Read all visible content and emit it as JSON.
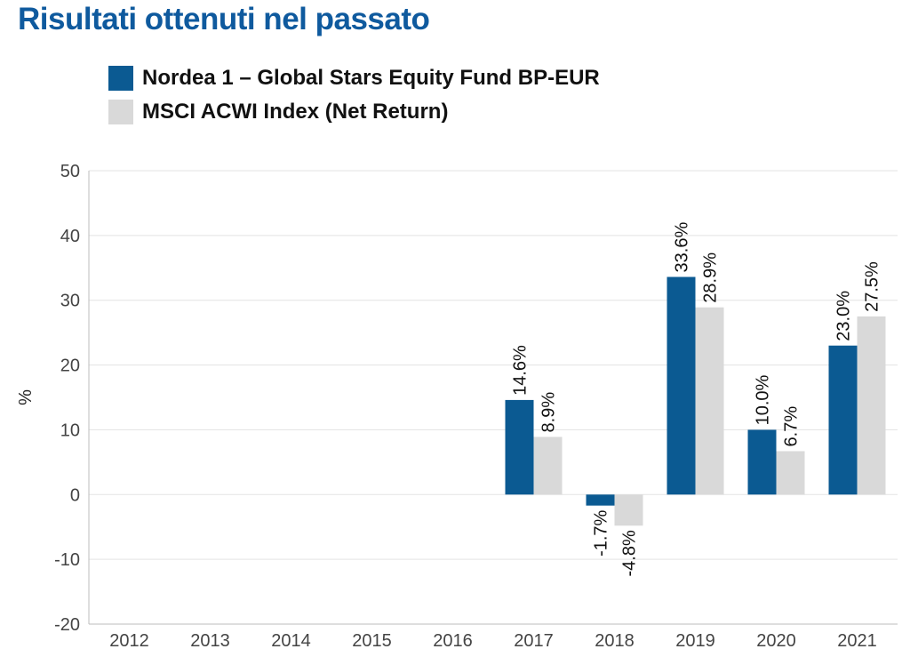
{
  "title": "Risultati ottenuti nel passato",
  "colors": {
    "fund": "#0b5a92",
    "index": "#d9d9d9",
    "title": "#0f5a9e"
  },
  "chart_data": {
    "type": "bar",
    "categories": [
      "2012",
      "2013",
      "2014",
      "2015",
      "2016",
      "2017",
      "2018",
      "2019",
      "2020",
      "2021"
    ],
    "series": [
      {
        "name": "Nordea 1 – Global Stars Equity Fund BP-EUR",
        "values": [
          null,
          null,
          null,
          null,
          null,
          14.6,
          -1.7,
          33.6,
          10.0,
          23.0
        ],
        "labels": [
          "",
          "",
          "",
          "",
          "",
          "14.6%",
          "-1.7%",
          "33.6%",
          "10.0%",
          "23.0%"
        ]
      },
      {
        "name": "MSCI ACWI Index (Net Return)",
        "values": [
          null,
          null,
          null,
          null,
          null,
          8.9,
          -4.8,
          28.9,
          6.7,
          27.5
        ],
        "labels": [
          "",
          "",
          "",
          "",
          "",
          "8.9%",
          "-4.8%",
          "28.9%",
          "6.7%",
          "27.5%"
        ]
      }
    ],
    "ylabel": "%",
    "ylim": [
      -20,
      50
    ],
    "yticks": [
      50,
      40,
      30,
      20,
      10,
      0,
      -10,
      -20
    ],
    "grid": true
  }
}
